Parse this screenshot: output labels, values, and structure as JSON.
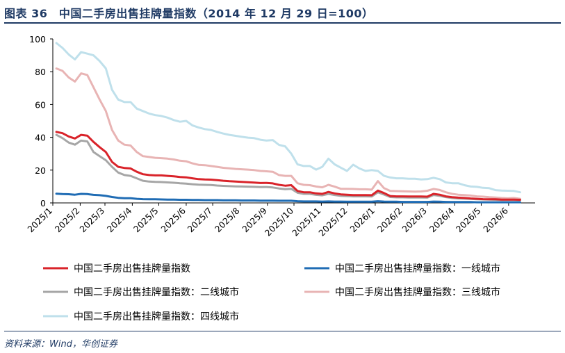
{
  "header": {
    "title": "图表 36　中国二手房出售挂牌量指数（2014 年 12 月 29 日=100）"
  },
  "footer": {
    "source": "资料来源：Wind，华创证券"
  },
  "chart_data": {
    "type": "line",
    "title": "图表 36　中国二手房出售挂牌量指数（2014 年 12 月 29 日=100）",
    "xlabel": "",
    "ylabel": "",
    "ylim": [
      0,
      100
    ],
    "yticks": [
      0,
      20,
      40,
      60,
      80,
      100
    ],
    "x_tick_labels": [
      "2025/1",
      "2025/2",
      "2025/3",
      "2025/4",
      "2025/5",
      "2025/6",
      "2025/7",
      "2025/8",
      "2025/9",
      "2025/10",
      "2025/11",
      "2025/12",
      "2026/1",
      "2026/2",
      "2026/3",
      "2026/4",
      "2026/5",
      "2026/6"
    ],
    "grid": false,
    "legend_position": "bottom",
    "x": [
      "2025/1/5",
      "2025/1/12",
      "2025/1/19",
      "2025/1/26",
      "2025/2/2",
      "2025/2/9",
      "2025/2/16",
      "2025/2/23",
      "2025/3/2",
      "2025/3/9",
      "2025/3/16",
      "2025/3/23",
      "2025/3/30",
      "2025/4/6",
      "2025/4/13",
      "2025/4/20",
      "2025/4/27",
      "2025/5/4",
      "2025/5/11",
      "2025/5/18",
      "2025/5/25",
      "2025/6/1",
      "2025/6/8",
      "2025/6/15",
      "2025/6/22",
      "2025/6/29",
      "2025/7/6",
      "2025/7/13",
      "2025/7/20",
      "2025/7/27",
      "2025/8/3",
      "2025/8/10",
      "2025/8/17",
      "2025/8/24",
      "2025/8/31",
      "2025/9/7",
      "2025/9/14",
      "2025/9/21",
      "2025/9/28",
      "2025/10/5",
      "2025/10/12",
      "2025/10/19",
      "2025/10/26",
      "2025/11/2",
      "2025/11/9",
      "2025/11/16",
      "2025/11/23",
      "2025/11/30",
      "2025/12/7",
      "2025/12/14",
      "2025/12/21",
      "2025/12/28",
      "2026/1/4",
      "2026/1/11",
      "2026/1/18",
      "2026/1/25",
      "2026/2/1",
      "2026/2/8",
      "2026/2/15",
      "2026/2/22",
      "2026/3/1",
      "2026/3/8",
      "2026/3/15",
      "2026/3/22",
      "2026/3/29",
      "2026/4/5",
      "2026/4/12",
      "2026/4/19",
      "2026/4/26",
      "2026/5/3",
      "2026/5/10",
      "2026/5/17",
      "2026/5/24",
      "2026/5/31",
      "2026/6/7",
      "2026/6/14"
    ],
    "series": [
      {
        "name": "中国二手房出售挂牌量指数",
        "color": "#d9232a",
        "values": [
          43.3,
          42.5,
          40.5,
          39.3,
          41.5,
          41.0,
          37.2,
          34.0,
          31.0,
          25.0,
          22.0,
          21.3,
          21.0,
          19.0,
          17.5,
          17.0,
          16.8,
          16.8,
          16.5,
          16.2,
          15.8,
          15.6,
          15.0,
          14.5,
          14.3,
          14.2,
          13.9,
          13.5,
          13.2,
          13.0,
          12.8,
          12.6,
          12.4,
          12.1,
          12.2,
          11.9,
          11.0,
          10.5,
          10.8,
          7.3,
          6.5,
          6.5,
          5.8,
          5.5,
          6.7,
          5.8,
          5.2,
          5.0,
          4.8,
          4.8,
          4.8,
          4.7,
          7.5,
          6.0,
          4.2,
          4.0,
          4.0,
          3.9,
          3.9,
          3.9,
          3.8,
          5.5,
          5.0,
          4.0,
          3.5,
          3.2,
          3.0,
          2.7,
          2.5,
          2.3,
          2.2,
          2.2,
          2.0,
          2.0,
          2.0,
          1.9
        ]
      },
      {
        "name": "中国二手房出售挂牌量指数：一线城市",
        "color": "#1f6cb4",
        "values": [
          5.6,
          5.4,
          5.3,
          5.0,
          5.5,
          5.4,
          4.9,
          4.7,
          4.3,
          3.6,
          3.1,
          2.9,
          2.9,
          2.5,
          2.3,
          2.2,
          2.2,
          2.1,
          2.0,
          2.0,
          1.9,
          1.9,
          1.8,
          1.8,
          1.7,
          1.7,
          1.7,
          1.6,
          1.6,
          1.6,
          1.5,
          1.5,
          1.5,
          1.4,
          1.4,
          1.4,
          1.3,
          1.3,
          1.3,
          1.0,
          0.9,
          0.9,
          0.9,
          0.8,
          0.9,
          0.8,
          0.8,
          0.7,
          0.7,
          0.7,
          0.7,
          0.7,
          1.0,
          0.8,
          0.7,
          0.7,
          0.6,
          0.6,
          0.6,
          0.6,
          0.6,
          0.8,
          0.7,
          0.6,
          0.5,
          0.5,
          0.5,
          0.5,
          0.4,
          0.4,
          0.4,
          0.4,
          0.4,
          0.4,
          0.4,
          0.4
        ]
      },
      {
        "name": "中国二手房出售挂牌量指数：二线城市",
        "color": "#a6a6a6",
        "values": [
          41.5,
          39.5,
          36.8,
          35.5,
          38.0,
          37.5,
          31.0,
          28.5,
          26.0,
          22.0,
          18.5,
          17.0,
          16.5,
          15.0,
          13.5,
          13.0,
          12.8,
          12.7,
          12.5,
          12.3,
          12.0,
          11.8,
          11.4,
          11.1,
          11.0,
          10.9,
          10.6,
          10.4,
          10.2,
          10.1,
          10.0,
          9.9,
          9.8,
          9.6,
          9.7,
          9.4,
          8.8,
          8.4,
          8.6,
          6.2,
          5.5,
          5.5,
          4.9,
          4.6,
          5.5,
          4.8,
          4.3,
          4.1,
          4.0,
          4.0,
          4.0,
          3.9,
          6.5,
          5.1,
          3.6,
          3.4,
          3.4,
          3.3,
          3.3,
          3.3,
          3.2,
          4.8,
          4.3,
          3.5,
          3.0,
          2.7,
          2.6,
          2.4,
          2.2,
          2.1,
          2.0,
          1.9,
          1.8,
          1.8,
          1.8,
          1.7
        ]
      },
      {
        "name": "中国二手房出售挂牌量指数：三线城市",
        "color": "#e8b4b4",
        "values": [
          82.0,
          80.5,
          76.5,
          74.0,
          79.0,
          78.0,
          70.5,
          63.0,
          56.0,
          44.5,
          38.0,
          35.5,
          35.0,
          31.0,
          28.5,
          28.0,
          27.5,
          27.3,
          27.0,
          26.5,
          25.7,
          25.4,
          24.1,
          23.2,
          23.0,
          22.5,
          22.0,
          21.4,
          21.1,
          20.7,
          20.5,
          20.3,
          20.0,
          19.5,
          19.3,
          19.0,
          17.0,
          16.5,
          16.5,
          12.0,
          11.0,
          10.8,
          10.0,
          9.5,
          11.0,
          9.9,
          8.6,
          8.6,
          8.5,
          8.3,
          8.3,
          8.1,
          13.3,
          9.0,
          7.3,
          7.2,
          7.1,
          7.0,
          6.9,
          7.0,
          7.4,
          8.5,
          7.9,
          6.5,
          5.5,
          5.0,
          4.8,
          4.5,
          4.0,
          3.8,
          3.5,
          3.3,
          3.0,
          2.8,
          3.0,
          2.5
        ]
      },
      {
        "name": "中国二手房出售挂牌量指数：四线城市",
        "color": "#bfe0eb",
        "values": [
          97.5,
          94.5,
          90.5,
          87.5,
          92.0,
          91.0,
          90.0,
          86.5,
          82.0,
          69.0,
          63.0,
          61.5,
          61.5,
          57.5,
          56.0,
          54.5,
          53.5,
          53.0,
          52.0,
          50.5,
          49.5,
          50.0,
          47.3,
          46.0,
          45.0,
          44.5,
          43.3,
          42.3,
          41.5,
          40.9,
          40.3,
          39.8,
          39.5,
          38.5,
          38.0,
          38.3,
          35.4,
          34.5,
          30.0,
          23.5,
          22.5,
          22.5,
          20.3,
          22.0,
          27.0,
          23.5,
          21.5,
          19.5,
          23.3,
          21.0,
          19.5,
          20.0,
          19.5,
          16.5,
          15.5,
          15.0,
          15.0,
          14.7,
          14.7,
          14.3,
          14.5,
          15.3,
          14.5,
          12.5,
          12.0,
          12.0,
          10.8,
          10.0,
          9.8,
          9.2,
          9.0,
          7.8,
          7.5,
          7.4,
          7.3,
          6.5
        ]
      }
    ]
  }
}
